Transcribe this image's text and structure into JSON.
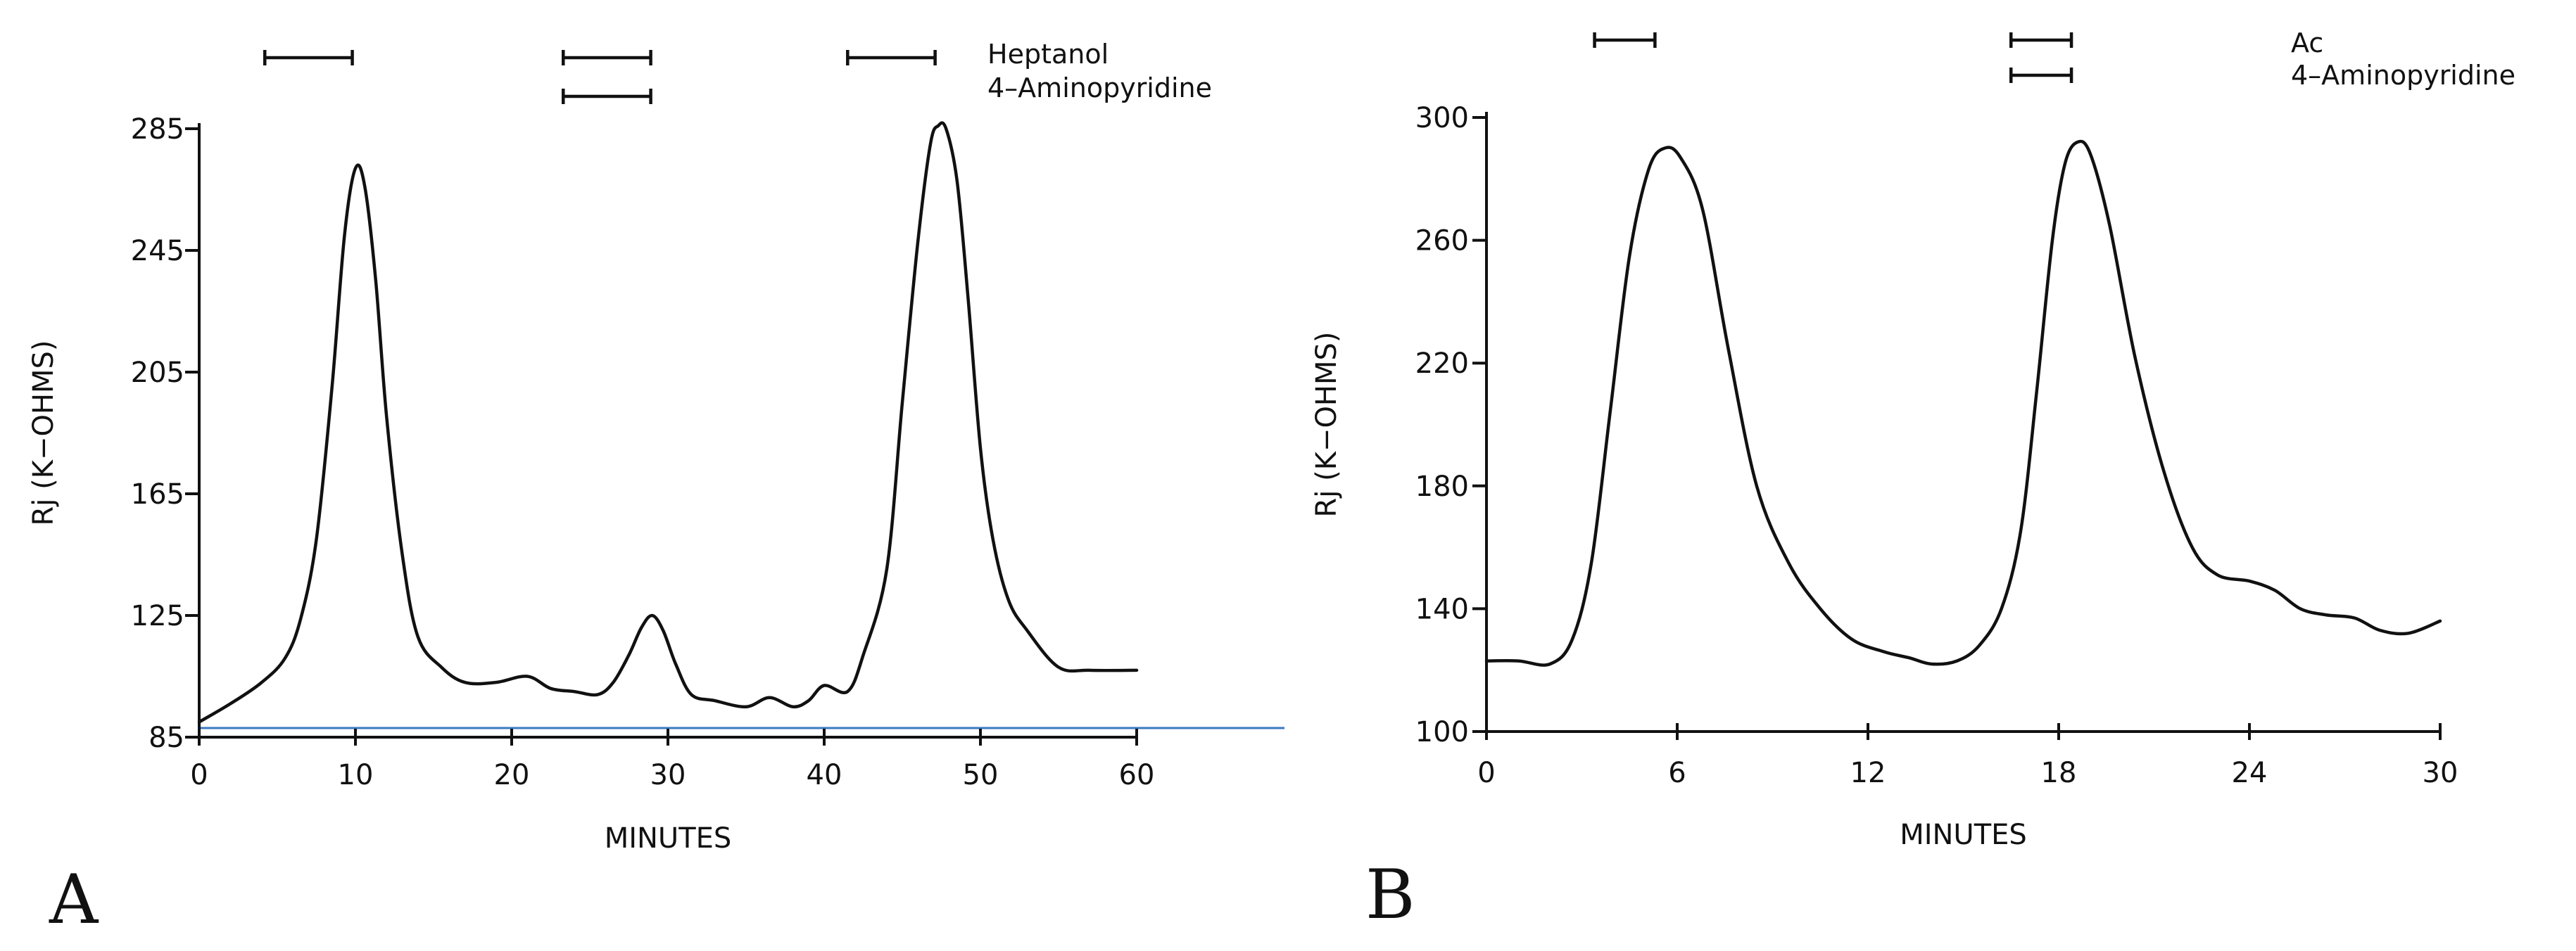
{
  "chart_data": [
    {
      "panel": "A",
      "type": "line",
      "xlabel": "MINUTES",
      "ylabel": "Rj (K−OHMS)",
      "xlim": [
        0,
        60
      ],
      "ylim": [
        85,
        285
      ],
      "xticks": [
        0,
        10,
        20,
        30,
        40,
        50,
        60
      ],
      "yticks": [
        85,
        125,
        165,
        205,
        245,
        285
      ],
      "reference_line_y": 88,
      "annotations": [
        {
          "label": "Heptanol",
          "bars": [
            [
              4.2,
              9.8
            ],
            [
              23.3,
              28.9
            ],
            [
              41.5,
              47.1
            ]
          ]
        },
        {
          "label": "4–Aminopyridine",
          "bars": [
            [
              23.3,
              28.9
            ]
          ]
        }
      ],
      "series": [
        {
          "name": "Rj",
          "x": [
            0,
            2,
            4,
            5.5,
            6.5,
            7.5,
            8.5,
            9.3,
            10,
            10.6,
            11.3,
            12,
            13,
            14,
            15.5,
            17,
            19,
            21,
            22.5,
            24,
            25.5,
            26.5,
            27.5,
            28.3,
            29,
            29.7,
            30.5,
            31.5,
            33,
            35,
            36.5,
            38,
            39,
            40,
            41.5,
            42.5,
            44,
            45,
            46,
            46.8,
            47.3,
            47.8,
            48.5,
            49.2,
            50,
            50.8,
            51.8,
            53,
            55,
            57,
            60
          ],
          "y": [
            90,
            96,
            103,
            111,
            124,
            150,
            200,
            250,
            272,
            266,
            235,
            190,
            145,
            118,
            108,
            103,
            103,
            105,
            101,
            100,
            99,
            103,
            112,
            121,
            125,
            120,
            109,
            99,
            97,
            95,
            98,
            95,
            97,
            102,
            100,
            112,
            140,
            195,
            248,
            280,
            286,
            285,
            268,
            230,
            180,
            150,
            130,
            120,
            108,
            107,
            107
          ]
        }
      ]
    },
    {
      "panel": "B",
      "type": "line",
      "xlabel": "MINUTES",
      "ylabel": "Rj (K−OHMS)",
      "xlim": [
        0,
        30
      ],
      "ylim": [
        100,
        300
      ],
      "xticks": [
        0,
        6,
        12,
        18,
        24,
        30
      ],
      "yticks": [
        100,
        140,
        180,
        220,
        260,
        300
      ],
      "annotations": [
        {
          "label": "Ac",
          "bars": [
            [
              3.4,
              5.3
            ],
            [
              16.5,
              18.4
            ]
          ]
        },
        {
          "label": "4–Aminopyridine",
          "bars": [
            [
              16.5,
              18.4
            ]
          ]
        }
      ],
      "series": [
        {
          "name": "Rj",
          "x": [
            0,
            1,
            2,
            2.7,
            3.3,
            3.9,
            4.5,
            5.1,
            5.6,
            6.1,
            6.8,
            7.6,
            8.5,
            9.5,
            10.5,
            11.5,
            12.5,
            13.3,
            14,
            14.8,
            15.5,
            16.2,
            16.8,
            17.3,
            17.8,
            18.2,
            18.6,
            19,
            19.6,
            20.4,
            21.3,
            22.2,
            23,
            24,
            24.8,
            25.6,
            26.4,
            27.3,
            28.1,
            29,
            30
          ],
          "y": [
            123,
            123,
            122,
            130,
            155,
            205,
            255,
            283,
            290,
            287,
            270,
            225,
            180,
            155,
            140,
            130,
            126,
            124,
            122,
            123,
            128,
            140,
            165,
            210,
            260,
            285,
            292,
            288,
            265,
            222,
            185,
            160,
            151,
            149,
            146,
            140,
            138,
            137,
            133,
            132,
            136
          ]
        }
      ]
    }
  ],
  "panel_labels": [
    "A",
    "B"
  ]
}
